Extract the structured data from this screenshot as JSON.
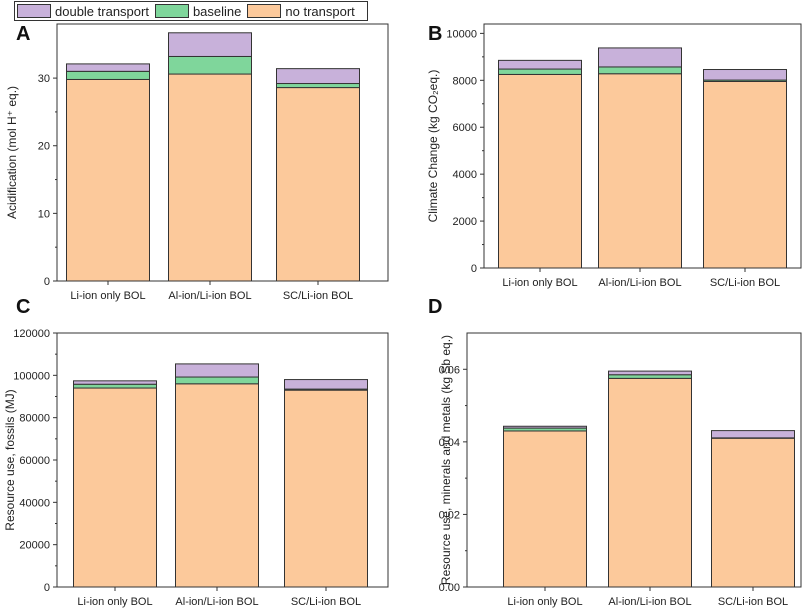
{
  "legend": {
    "items": [
      {
        "label": "double transport",
        "color": "#c8b1da"
      },
      {
        "label": "baseline",
        "color": "#7fd69b"
      },
      {
        "label": "no transport",
        "color": "#fcc99b"
      }
    ]
  },
  "chart_data": [
    {
      "panel": "A",
      "type": "bar",
      "stacked": true,
      "categories": [
        "Li-ion only BOL",
        "Al-ion/Li-ion BOL",
        "SC/Li-ion BOL"
      ],
      "ylabel": "Acidification (mol H⁺ eq.)",
      "ylim": [
        0,
        38
      ],
      "yticks": [
        0,
        10,
        20,
        30
      ],
      "series": [
        {
          "name": "no transport",
          "values": [
            29.8,
            30.6,
            28.6
          ]
        },
        {
          "name": "baseline",
          "values": [
            1.2,
            2.6,
            0.6
          ]
        },
        {
          "name": "double transport",
          "values": [
            1.1,
            3.5,
            2.2
          ]
        }
      ]
    },
    {
      "panel": "B",
      "type": "bar",
      "stacked": true,
      "categories": [
        "Li-ion only BOL",
        "Al-ion/Li-ion BOL",
        "SC/Li-ion BOL"
      ],
      "ylabel": "Climate Change (kg CO₂eq.)",
      "ylim": [
        0,
        10400
      ],
      "yticks": [
        0,
        2000,
        4000,
        6000,
        8000,
        10000
      ],
      "series": [
        {
          "name": "no transport",
          "values": [
            8250,
            8280,
            7950
          ]
        },
        {
          "name": "baseline",
          "values": [
            230,
            290,
            60
          ]
        },
        {
          "name": "double transport",
          "values": [
            370,
            810,
            450
          ]
        }
      ]
    },
    {
      "panel": "C",
      "type": "bar",
      "stacked": true,
      "categories": [
        "Li-ion only BOL",
        "Al-ion/Li-ion BOL",
        "SC/Li-ion BOL"
      ],
      "ylabel": "Resource use, fossils (MJ)",
      "ylim": [
        0,
        120000
      ],
      "yticks": [
        0,
        20000,
        40000,
        60000,
        80000,
        100000,
        120000
      ],
      "series": [
        {
          "name": "no transport",
          "values": [
            94000,
            96000,
            93000
          ]
        },
        {
          "name": "baseline",
          "values": [
            1800,
            3200,
            500
          ]
        },
        {
          "name": "double transport",
          "values": [
            1600,
            6200,
            4500
          ]
        }
      ]
    },
    {
      "panel": "D",
      "type": "bar",
      "stacked": true,
      "categories": [
        "Li-ion only BOL",
        "Al-ion/Li-ion BOL",
        "SC/Li-ion BOL"
      ],
      "ylabel": "Resource use, minerals and metals (kg Sb eq.)",
      "ylim": [
        0,
        0.07
      ],
      "yticks": [
        "0.00",
        "0.02",
        "0.04",
        "0.06"
      ],
      "series": [
        {
          "name": "no transport",
          "values": [
            0.043,
            0.0575,
            0.041
          ]
        },
        {
          "name": "baseline",
          "values": [
            0.0008,
            0.001,
            0.0001
          ]
        },
        {
          "name": "double transport",
          "values": [
            0.0005,
            0.001,
            0.002
          ]
        }
      ]
    }
  ]
}
